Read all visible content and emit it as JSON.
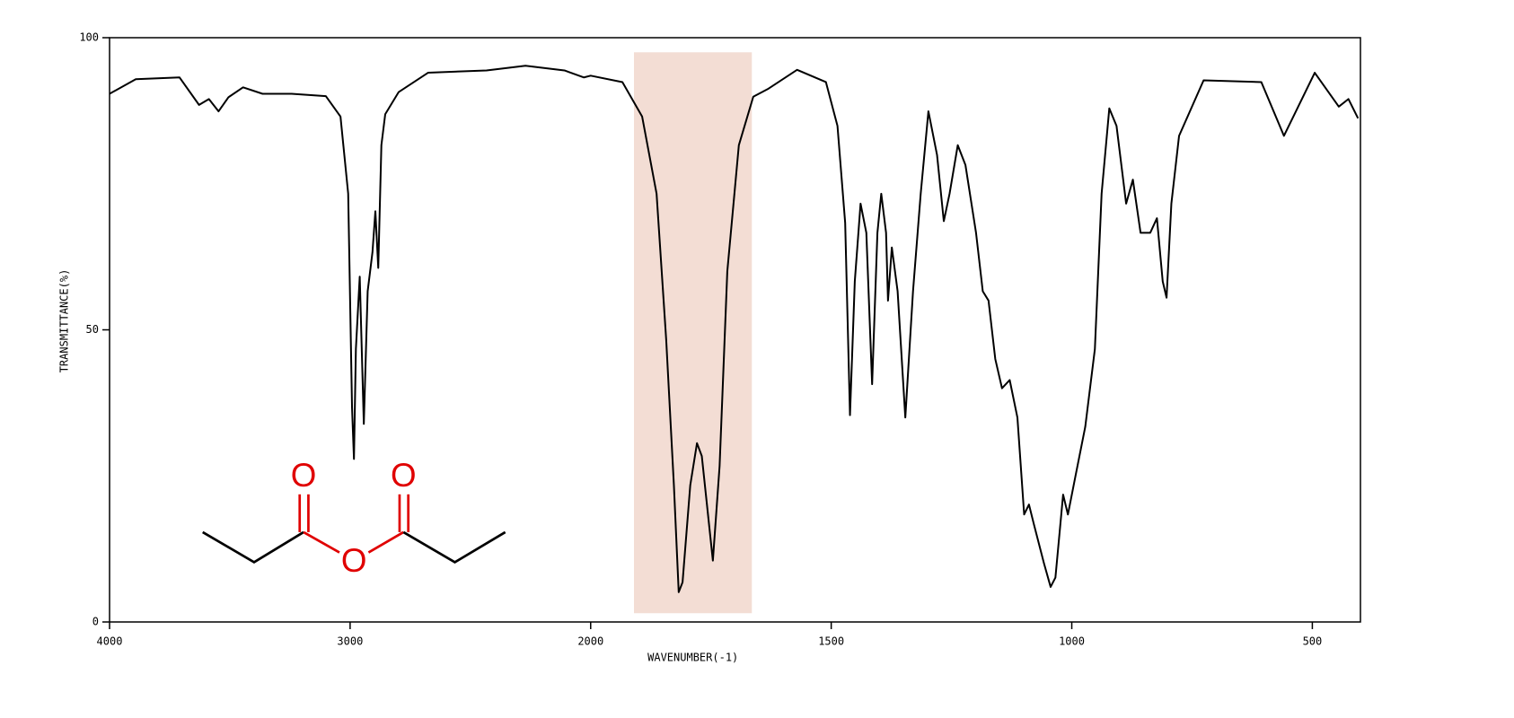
{
  "chart_data": {
    "type": "line",
    "x_label": "WAVENUMBER(-1)",
    "y_label": "TRANSMITTANCE(%)",
    "xlim": [
      4000,
      400
    ],
    "x_scale_break": 2000,
    "xticks": [
      4000,
      3000,
      2000,
      1500,
      1000,
      500
    ],
    "ylim": [
      0,
      100
    ],
    "yticks": [
      0,
      50,
      100
    ],
    "highlight": {
      "xrange": [
        1910,
        1665
      ],
      "yrange": [
        1.5,
        97.5
      ],
      "color": "#f3ddd4"
    },
    "series": [
      {
        "name": "Transmittance",
        "color": "#000000",
        "x": [
          4000,
          3891,
          3709,
          3628,
          3587,
          3547,
          3506,
          3445,
          3364,
          3243,
          3101,
          3040,
          3008,
          2992,
          2984,
          2976,
          2960,
          2943,
          2927,
          2907,
          2895,
          2883,
          2870,
          2854,
          2798,
          2676,
          2433,
          2271,
          2109,
          2028,
          2000,
          1934,
          1893,
          1863,
          1843,
          1827,
          1817,
          1809,
          1793,
          1779,
          1769,
          1746,
          1732,
          1716,
          1692,
          1662,
          1632,
          1571,
          1511,
          1487,
          1471,
          1461,
          1451,
          1439,
          1427,
          1415,
          1404,
          1396,
          1386,
          1382,
          1374,
          1362,
          1346,
          1330,
          1314,
          1298,
          1280,
          1266,
          1254,
          1237,
          1221,
          1199,
          1185,
          1173,
          1159,
          1145,
          1129,
          1113,
          1099,
          1089,
          1079,
          1058,
          1044,
          1034,
          1018,
          1008,
          992,
          972,
          952,
          938,
          922,
          907,
          887,
          873,
          857,
          837,
          823,
          811,
          803,
          793,
          777,
          726,
          606,
          559,
          495,
          445,
          425,
          405
        ],
        "values": [
          90.4,
          92.9,
          93.2,
          88.5,
          89.5,
          87.4,
          89.8,
          91.5,
          90.4,
          90.4,
          90.0,
          86.5,
          73.3,
          36.7,
          27.9,
          46.7,
          59.1,
          33.9,
          56.6,
          63.3,
          70.3,
          60.6,
          81.6,
          86.9,
          90.7,
          94.0,
          94.4,
          95.2,
          94.4,
          93.2,
          93.5,
          92.4,
          86.5,
          73.3,
          48.3,
          23.4,
          5.1,
          6.8,
          23.4,
          30.6,
          28.4,
          10.5,
          26.7,
          60.0,
          81.6,
          89.9,
          91.2,
          94.5,
          92.4,
          84.9,
          68.3,
          35.4,
          58.3,
          71.6,
          66.6,
          40.7,
          66.6,
          73.3,
          66.6,
          55.0,
          64.1,
          56.6,
          35.0,
          56.6,
          73.3,
          87.4,
          79.9,
          68.6,
          73.3,
          81.6,
          78.2,
          66.6,
          56.6,
          55.0,
          45.0,
          40.0,
          41.4,
          35.0,
          18.4,
          20.1,
          16.8,
          10.1,
          6.0,
          7.6,
          21.8,
          18.4,
          25.1,
          33.4,
          46.7,
          73.3,
          87.9,
          84.9,
          71.6,
          75.7,
          66.6,
          66.6,
          69.1,
          58.3,
          55.5,
          71.6,
          83.2,
          92.7,
          92.4,
          83.2,
          94.0,
          88.2,
          89.5,
          86.2
        ]
      }
    ]
  },
  "structure": {
    "atoms": [
      "O",
      "O",
      "O"
    ]
  }
}
